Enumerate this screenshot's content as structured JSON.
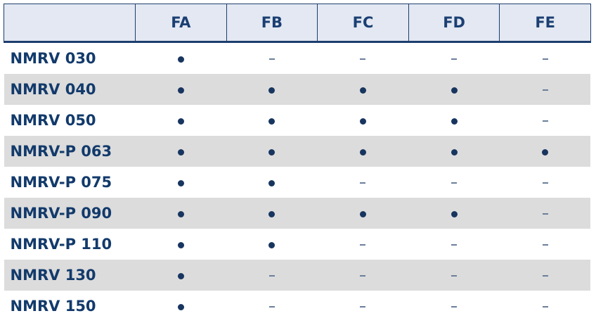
{
  "table": {
    "columns": [
      "FA",
      "FB",
      "FC",
      "FD",
      "FE"
    ],
    "rows": [
      {
        "model": "NMRV 030",
        "values": [
          "•",
          "–",
          "–",
          "–",
          "–"
        ]
      },
      {
        "model": "NMRV 040",
        "values": [
          "•",
          "•",
          "•",
          "•",
          "–"
        ]
      },
      {
        "model": "NMRV 050",
        "values": [
          "•",
          "•",
          "•",
          "•",
          "–"
        ]
      },
      {
        "model": "NMRV-P 063",
        "values": [
          "•",
          "•",
          "•",
          "•",
          "•"
        ]
      },
      {
        "model": "NMRV-P 075",
        "values": [
          "•",
          "•",
          "–",
          "–",
          "–"
        ]
      },
      {
        "model": "NMRV-P 090",
        "values": [
          "•",
          "•",
          "•",
          "•",
          "–"
        ]
      },
      {
        "model": "NMRV-P 110",
        "values": [
          "•",
          "•",
          "–",
          "–",
          "–"
        ]
      },
      {
        "model": "NMRV 130",
        "values": [
          "•",
          "–",
          "–",
          "–",
          "–"
        ]
      },
      {
        "model": "NMRV 150",
        "values": [
          "•",
          "–",
          "–",
          "–",
          "–"
        ]
      }
    ]
  },
  "colors": {
    "header_bg": "#e3e8f2",
    "header_text": "#1b3f73",
    "row_alt_bg": "#dcdcdc",
    "dot": "#17355f"
  }
}
